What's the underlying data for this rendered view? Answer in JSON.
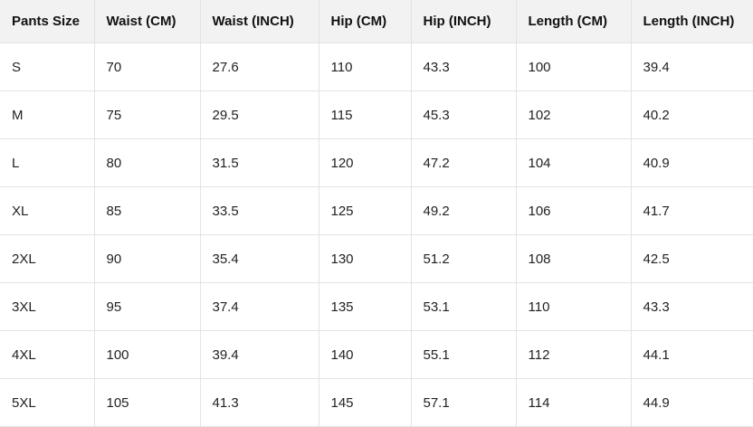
{
  "table": {
    "headers": [
      "Pants Size",
      "Waist (CM)",
      "Waist (INCH)",
      "Hip (CM)",
      "Hip (INCH)",
      "Length (CM)",
      "Length (INCH)"
    ],
    "rows": [
      [
        "S",
        "70",
        "27.6",
        "110",
        "43.3",
        "100",
        "39.4"
      ],
      [
        "M",
        "75",
        "29.5",
        "115",
        "45.3",
        "102",
        "40.2"
      ],
      [
        "L",
        "80",
        "31.5",
        "120",
        "47.2",
        "104",
        "40.9"
      ],
      [
        "XL",
        "85",
        "33.5",
        "125",
        "49.2",
        "106",
        "41.7"
      ],
      [
        "2XL",
        "90",
        "35.4",
        "130",
        "51.2",
        "108",
        "42.5"
      ],
      [
        "3XL",
        "95",
        "37.4",
        "135",
        "53.1",
        "110",
        "43.3"
      ],
      [
        "4XL",
        "100",
        "39.4",
        "140",
        "55.1",
        "112",
        "44.1"
      ],
      [
        "5XL",
        "105",
        "41.3",
        "145",
        "57.1",
        "114",
        "44.9"
      ]
    ]
  }
}
